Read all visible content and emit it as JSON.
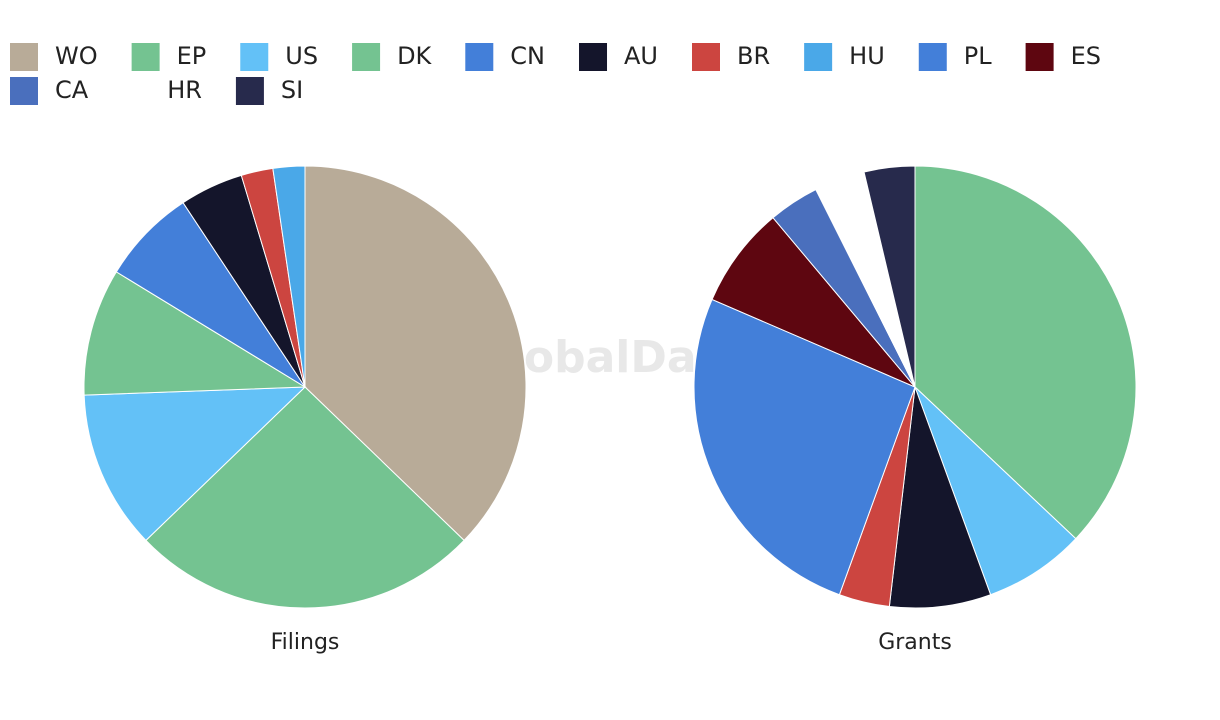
{
  "legend": [
    {
      "name": "WO",
      "color": "#b8ab98"
    },
    {
      "name": "EP",
      "color": "#74c391"
    },
    {
      "name": "US",
      "color": "#63c1f7"
    },
    {
      "name": "DK",
      "color": "#74c391"
    },
    {
      "name": "CN",
      "color": "#437fd9"
    },
    {
      "name": "AU",
      "color": "#14152b"
    },
    {
      "name": "BR",
      "color": "#cc4540"
    },
    {
      "name": "HU",
      "color": "#4aa8e8"
    },
    {
      "name": "PL",
      "color": "#437fd9"
    },
    {
      "name": "ES",
      "color": "#5e0610"
    },
    {
      "name": "CA",
      "color": "#4a6fbd"
    },
    {
      "name": "HR",
      "color": "#ffffff"
    },
    {
      "name": "SI",
      "color": "#272a4c"
    }
  ],
  "watermark": "GlobalData",
  "chart_data": [
    {
      "type": "pie",
      "title": "Filings",
      "categories": [
        "WO",
        "EP",
        "US",
        "DK",
        "CN",
        "AU",
        "BR",
        "HU"
      ],
      "values": [
        16,
        11,
        5,
        4,
        3,
        2,
        1,
        1
      ]
    },
    {
      "type": "pie",
      "title": "Grants",
      "categories": [
        "EP",
        "US",
        "AU",
        "BR",
        "PL",
        "ES",
        "CA",
        "HR",
        "SI"
      ],
      "values": [
        10,
        2,
        2,
        1,
        7,
        2,
        1,
        1,
        1
      ]
    }
  ]
}
